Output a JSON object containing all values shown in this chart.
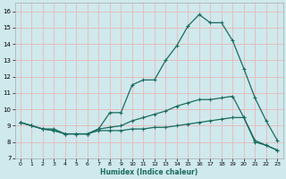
{
  "xlabel": "Humidex (Indice chaleur)",
  "background_color": "#cfe9ed",
  "grid_color": "#b8d8dc",
  "line_color": "#1a6b5e",
  "xlim": [
    -0.5,
    23.5
  ],
  "ylim": [
    7,
    16.5
  ],
  "xticks": [
    0,
    1,
    2,
    3,
    4,
    5,
    6,
    7,
    8,
    9,
    10,
    11,
    12,
    13,
    14,
    15,
    16,
    17,
    18,
    19,
    20,
    21,
    22,
    23
  ],
  "yticks": [
    7,
    8,
    9,
    10,
    11,
    12,
    13,
    14,
    15,
    16
  ],
  "line1_x": [
    0,
    1,
    2,
    3,
    4,
    5,
    6,
    7,
    8,
    9,
    10,
    11,
    12,
    13,
    14,
    15,
    16,
    17,
    18,
    19,
    20,
    21,
    22,
    23
  ],
  "line1_y": [
    9.2,
    9.0,
    8.8,
    8.8,
    8.5,
    8.5,
    8.5,
    8.8,
    9.8,
    9.8,
    11.5,
    11.8,
    11.8,
    13.0,
    13.9,
    15.1,
    15.8,
    15.3,
    15.3,
    14.2,
    12.5,
    10.7,
    9.3,
    8.1
  ],
  "line2_x": [
    0,
    1,
    2,
    3,
    4,
    5,
    6,
    7,
    8,
    9,
    10,
    11,
    12,
    13,
    14,
    15,
    16,
    17,
    18,
    19,
    20,
    21,
    22,
    23
  ],
  "line2_y": [
    9.2,
    9.0,
    8.8,
    8.7,
    8.5,
    8.5,
    8.5,
    8.8,
    8.9,
    9.0,
    9.3,
    9.5,
    9.7,
    9.9,
    10.2,
    10.4,
    10.6,
    10.6,
    10.7,
    10.8,
    9.5,
    8.1,
    7.8,
    7.5
  ],
  "line3_x": [
    0,
    1,
    2,
    3,
    4,
    5,
    6,
    7,
    8,
    9,
    10,
    11,
    12,
    13,
    14,
    15,
    16,
    17,
    18,
    19,
    20,
    21,
    22,
    23
  ],
  "line3_y": [
    9.2,
    9.0,
    8.8,
    8.7,
    8.5,
    8.5,
    8.5,
    8.7,
    8.7,
    8.7,
    8.8,
    8.8,
    8.9,
    8.9,
    9.0,
    9.1,
    9.2,
    9.3,
    9.4,
    9.5,
    9.5,
    8.0,
    7.8,
    7.5
  ]
}
